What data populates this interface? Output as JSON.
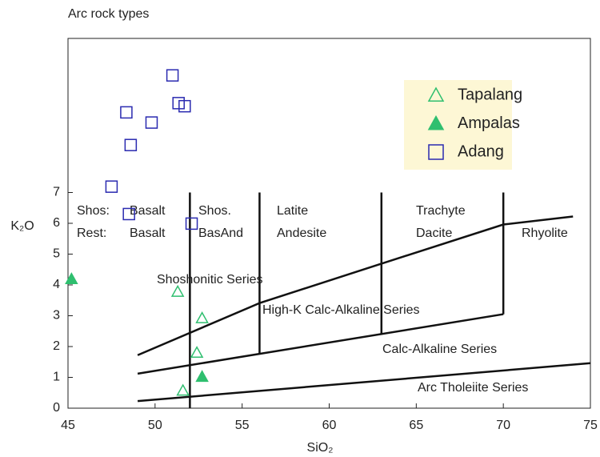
{
  "chart_data": {
    "type": "scatter",
    "title": "Arc rock types",
    "x_label": "SiO₂",
    "y_label": "K₂O",
    "xlim": [
      45,
      75
    ],
    "ylim": [
      0,
      12
    ],
    "xticks": [
      45,
      50,
      55,
      60,
      65,
      70,
      75
    ],
    "yticks": [
      0,
      1,
      2,
      3,
      4,
      5,
      6,
      7
    ],
    "series": [
      {
        "name": "Tapalang",
        "color": "#2fbf6f",
        "marker": "triangle-open",
        "x": [
          51.3,
          52.7,
          52.4,
          51.6
        ],
        "y": [
          3.78,
          2.92,
          1.8,
          0.57
        ]
      },
      {
        "name": "Ampalas",
        "color": "#2fbf6f",
        "marker": "triangle",
        "x": [
          45.2,
          52.7
        ],
        "y": [
          4.19,
          1.02
        ]
      },
      {
        "name": "Adang",
        "color": "#2a2ab0",
        "marker": "square-open",
        "x": [
          51.0,
          48.35,
          49.8,
          51.35,
          51.7,
          48.6,
          47.5,
          48.5,
          52.1
        ],
        "y": [
          10.8,
          9.6,
          9.27,
          9.9,
          9.8,
          8.54,
          7.19,
          6.3,
          5.99
        ]
      }
    ],
    "lines": [
      {
        "x": [
          49,
          56,
          63,
          70,
          74
        ],
        "y": [
          1.72,
          3.41,
          4.69,
          5.96,
          6.22
        ]
      },
      {
        "x": [
          49,
          70
        ],
        "y": [
          1.12,
          3.05
        ]
      },
      {
        "x": [
          49,
          75
        ],
        "y": [
          0.23,
          1.46
        ]
      },
      {
        "x": [
          52,
          52
        ],
        "y": [
          7,
          0
        ]
      },
      {
        "x": [
          56,
          56
        ],
        "y": [
          7,
          1.76
        ]
      },
      {
        "x": [
          63,
          63
        ],
        "y": [
          7,
          2.41
        ]
      },
      {
        "x": [
          70,
          70
        ],
        "y": [
          7,
          3.05
        ]
      }
    ],
    "annotations": [
      "Shos:",
      "Basalt",
      "Shos.",
      "Latite",
      "Trachyte",
      "Rest:",
      "Basalt",
      "BasAnd",
      "Andesite",
      "Dacite",
      "Rhyolite",
      "Shoshonitic Series",
      "High-K Calc-Alkaline Series",
      "Calc-Alkaline Series",
      "Arc Tholeiite Series"
    ]
  }
}
